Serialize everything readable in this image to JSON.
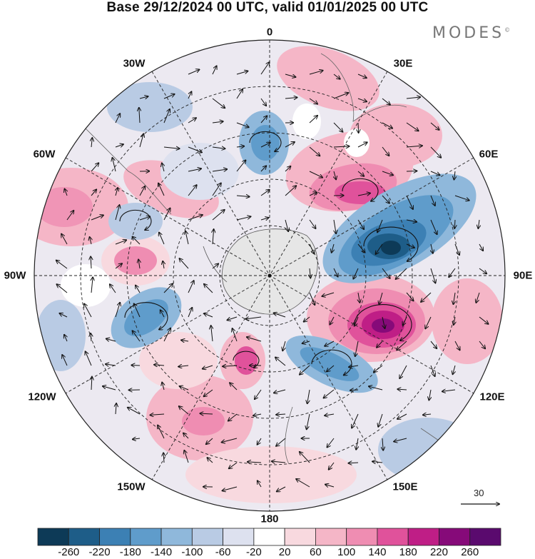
{
  "title": "Base 29/12/2024 00 UTC, valid 01/01/2025 00 UTC",
  "brand": "MODES",
  "brand_mark": "©",
  "longitude_labels": {
    "n0": "0",
    "n30e": "30E",
    "n60e": "60E",
    "n90e": "90E",
    "n120e": "120E",
    "n150e": "150E",
    "n180": "180",
    "n150w": "150W",
    "n120w": "120W",
    "n90w": "90W",
    "n60w": "60W",
    "n30w": "30W"
  },
  "reference_vector": {
    "value": "30"
  },
  "colorbar": {
    "ticks": [
      "-260",
      "-220",
      "-180",
      "-140",
      "-100",
      "-60",
      "-20",
      "20",
      "60",
      "100",
      "140",
      "180",
      "220",
      "260"
    ],
    "colors": [
      "#0d3a57",
      "#1e5d88",
      "#3c80b4",
      "#5f9ccb",
      "#8fb8db",
      "#b9cbe4",
      "#dde1ef",
      "#ffffff",
      "#f8d9df",
      "#f5b6c7",
      "#ef8db2",
      "#e0529b",
      "#bf1e86",
      "#860a79",
      "#5a0a6e"
    ]
  },
  "icons": {
    "pole_marker": "pole-dot-icon",
    "reference_arrow": "reference-arrow-icon"
  }
}
